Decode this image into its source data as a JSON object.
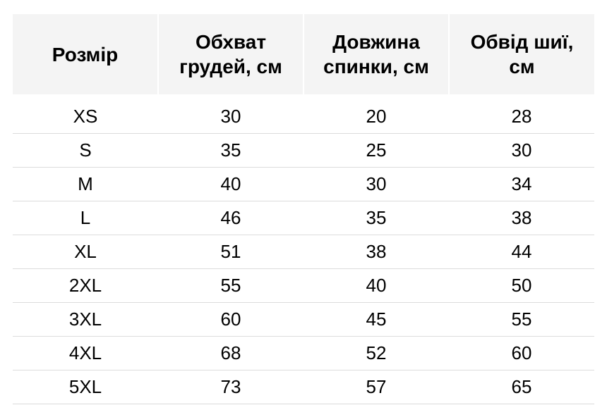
{
  "table": {
    "type": "table",
    "background_color": "#ffffff",
    "header_background": "#f4f4f4",
    "border_color": "#dcdcdc",
    "text_color": "#000000",
    "header_fontsize": 28,
    "cell_fontsize": 26,
    "font_family": "Arial",
    "columns": [
      {
        "label": "Розмір",
        "align": "center"
      },
      {
        "label": "Обхват грудей, см",
        "align": "center"
      },
      {
        "label": "Довжина спинки, см",
        "align": "center"
      },
      {
        "label": "Обвід шиї, см",
        "align": "center"
      }
    ],
    "rows": [
      {
        "size": "XS",
        "chest": "30",
        "back": "20",
        "neck": "28"
      },
      {
        "size": "S",
        "chest": "35",
        "back": "25",
        "neck": "30"
      },
      {
        "size": "M",
        "chest": "40",
        "back": "30",
        "neck": "34"
      },
      {
        "size": "L",
        "chest": "46",
        "back": "35",
        "neck": "38"
      },
      {
        "size": "XL",
        "chest": "51",
        "back": "38",
        "neck": "44"
      },
      {
        "size": "2XL",
        "chest": "55",
        "back": "40",
        "neck": "50"
      },
      {
        "size": "3XL",
        "chest": "60",
        "back": "45",
        "neck": "55"
      },
      {
        "size": "4XL",
        "chest": "68",
        "back": "52",
        "neck": "60"
      },
      {
        "size": "5XL",
        "chest": "73",
        "back": "57",
        "neck": "65"
      }
    ]
  }
}
